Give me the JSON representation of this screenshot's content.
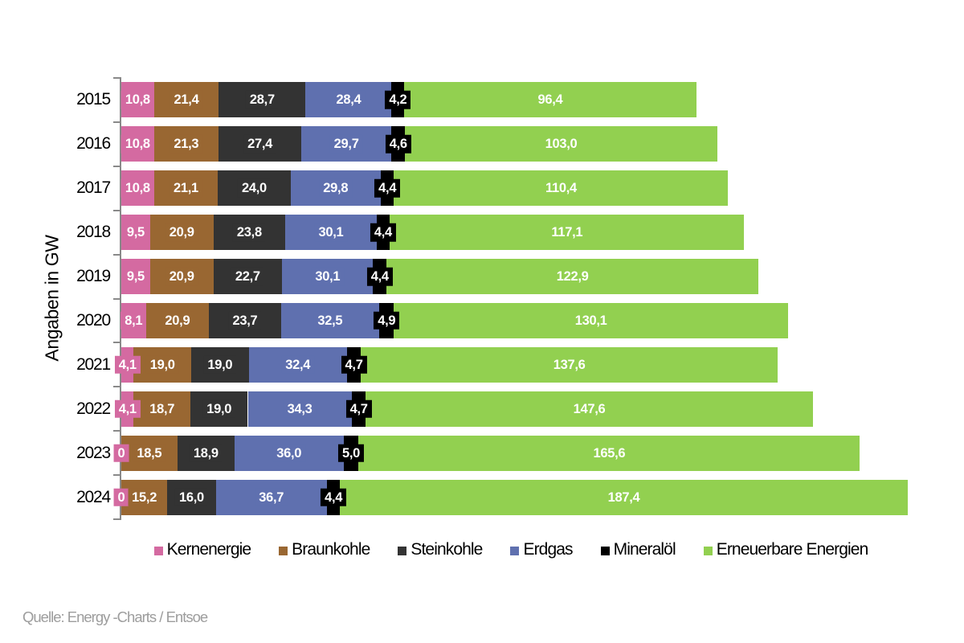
{
  "chart_data": {
    "type": "bar",
    "orientation": "horizontal",
    "stacked": true,
    "ylabel": "Angaben in GW",
    "unit": "GW",
    "grid": false,
    "legend_position": "bottom",
    "categories": [
      "2015",
      "2016",
      "2017",
      "2018",
      "2019",
      "2020",
      "2021",
      "2022",
      "2023",
      "2024"
    ],
    "series": [
      {
        "name": "Kernenergie",
        "color": "#d46aa1",
        "values": [
          10.8,
          10.8,
          10.8,
          9.5,
          9.5,
          8.1,
          4.1,
          4.1,
          0,
          0
        ],
        "labels": [
          "10,8",
          "10,8",
          "10,8",
          "9,5",
          "9,5",
          "8,1",
          "4,1",
          "4,1",
          "0",
          "0"
        ]
      },
      {
        "name": "Braunkohle",
        "color": "#996732",
        "values": [
          21.4,
          21.3,
          21.1,
          20.9,
          20.9,
          20.9,
          19.0,
          18.7,
          18.5,
          15.2
        ],
        "labels": [
          "21,4",
          "21,3",
          "21,1",
          "20,9",
          "20,9",
          "20,9",
          "19,0",
          "18,7",
          "18,5",
          "15,2"
        ]
      },
      {
        "name": "Steinkohle",
        "color": "#333333",
        "values": [
          28.7,
          27.4,
          24.0,
          23.8,
          22.7,
          23.7,
          19.0,
          19.0,
          18.9,
          16.0
        ],
        "labels": [
          "28,7",
          "27,4",
          "24,0",
          "23,8",
          "22,7",
          "23,7",
          "19,0",
          "19,0",
          "18,9",
          "16,0"
        ]
      },
      {
        "name": "Erdgas",
        "color": "#5f70af",
        "values": [
          28.4,
          29.7,
          29.8,
          30.1,
          30.1,
          32.5,
          32.4,
          34.3,
          36.0,
          36.7
        ],
        "labels": [
          "28,4",
          "29,7",
          "29,8",
          "30,1",
          "30,1",
          "32,5",
          "32,4",
          "34,3",
          "36,0",
          "36,7"
        ]
      },
      {
        "name": "Mineralöl",
        "color": "#000000",
        "values": [
          4.2,
          4.6,
          4.4,
          4.4,
          4.4,
          4.9,
          4.7,
          4.7,
          5.0,
          4.4
        ],
        "labels": [
          "4,2",
          "4,6",
          "4,4",
          "4,4",
          "4,4",
          "4,9",
          "4,7",
          "4,7",
          "5,0",
          "4,4"
        ]
      },
      {
        "name": "Erneuerbare Energien",
        "color": "#92d050",
        "values": [
          96.4,
          103.0,
          110.4,
          117.1,
          122.9,
          130.1,
          137.6,
          147.6,
          165.6,
          187.4
        ],
        "labels": [
          "96,4",
          "103,0",
          "110,4",
          "117,1",
          "122,9",
          "130,1",
          "137,6",
          "147,6",
          "165,6",
          "187,4"
        ]
      }
    ]
  },
  "legend": {
    "items": [
      "Kernenergie",
      "Braunkohle",
      "Steinkohle",
      "Erdgas",
      "Mineralöl",
      "Erneuerbare Energien"
    ]
  },
  "source": {
    "text": "Quelle: Energy -Charts / Entsoe"
  },
  "style": {
    "axis_color": "#898989",
    "label_text_color": "#ffffff",
    "text_color": "#000000",
    "source_color": "#9d9d9d"
  }
}
